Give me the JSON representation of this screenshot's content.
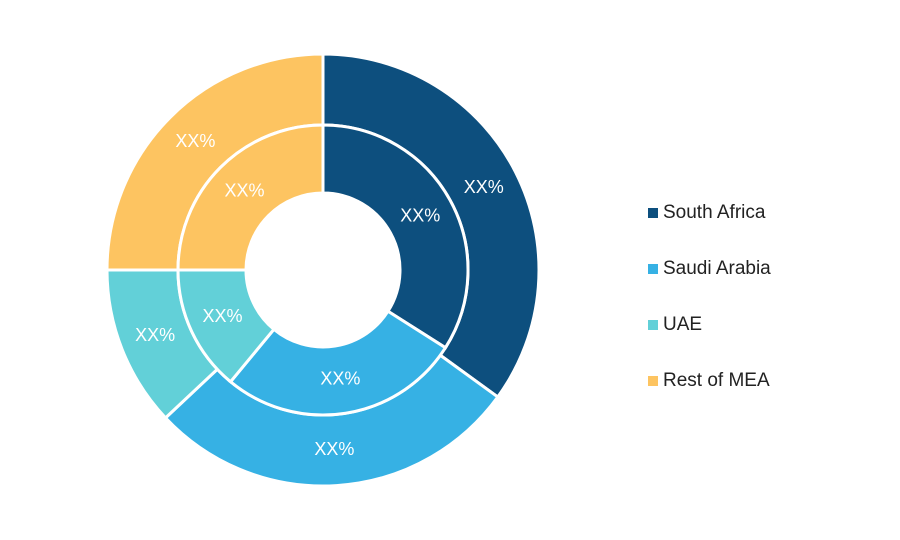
{
  "chart_data": {
    "type": "nested-donut",
    "categories": [
      "South Africa",
      "Saudi Arabia",
      "UAE",
      "Rest of MEA"
    ],
    "colors": [
      "#0d4f7e",
      "#36b1e4",
      "#62d0d8",
      "#fdc461"
    ],
    "series": [
      {
        "values": [
          35,
          28,
          12,
          25
        ],
        "value_labels": [
          "XX%",
          "XX%",
          "XX%",
          "XX%"
        ]
      },
      {
        "values": [
          34,
          27,
          14,
          25
        ],
        "value_labels": [
          "XX%",
          "XX%",
          "XX%",
          "XX%"
        ]
      }
    ],
    "legend": "right"
  }
}
